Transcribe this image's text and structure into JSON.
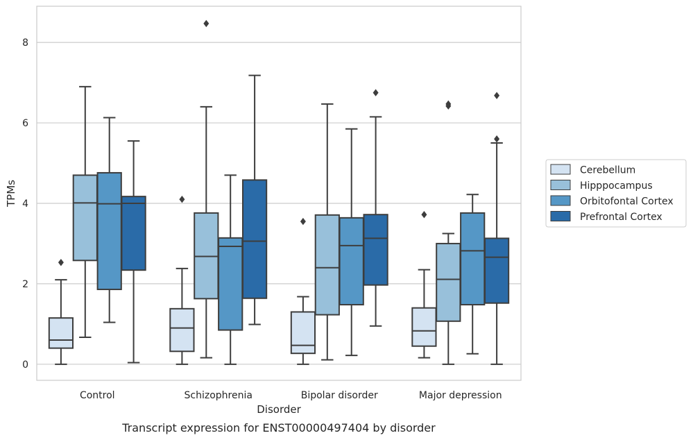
{
  "chart_data": {
    "type": "boxplot",
    "xlabel": "Disorder",
    "ylabel": "TPMs",
    "caption": "Transcript expression for ENST00000497404 by disorder",
    "ylim": [
      -0.4,
      8.9
    ],
    "yticks": [
      0,
      2,
      4,
      6,
      8
    ],
    "grid": "horizontal",
    "legend_position": "right",
    "categories": [
      "Control",
      "Schizophrenia",
      "Bipolar disorder",
      "Major depression"
    ],
    "series": [
      {
        "name": "Cerebellum",
        "color": "#d4e3f2",
        "boxes": [
          {
            "whislo": 0.0,
            "q1": 0.4,
            "med": 0.6,
            "q3": 1.15,
            "whishi": 2.1,
            "fliers": [
              2.53
            ]
          },
          {
            "whislo": 0.0,
            "q1": 0.32,
            "med": 0.9,
            "q3": 1.38,
            "whishi": 2.38,
            "fliers": [
              4.1
            ]
          },
          {
            "whislo": 0.0,
            "q1": 0.27,
            "med": 0.47,
            "q3": 1.3,
            "whishi": 1.68,
            "fliers": [
              3.55
            ]
          },
          {
            "whislo": 0.16,
            "q1": 0.45,
            "med": 0.83,
            "q3": 1.4,
            "whishi": 2.35,
            "fliers": [
              3.72
            ]
          }
        ]
      },
      {
        "name": "Hipppocampus",
        "color": "#98c0da",
        "boxes": [
          {
            "whislo": 0.67,
            "q1": 2.58,
            "med": 4.01,
            "q3": 4.7,
            "whishi": 6.9,
            "fliers": []
          },
          {
            "whislo": 0.16,
            "q1": 1.63,
            "med": 2.68,
            "q3": 3.76,
            "whishi": 6.4,
            "fliers": [
              8.47
            ]
          },
          {
            "whislo": 0.11,
            "q1": 1.23,
            "med": 2.4,
            "q3": 3.71,
            "whishi": 6.47,
            "fliers": []
          },
          {
            "whislo": 0.0,
            "q1": 1.07,
            "med": 2.11,
            "q3": 3.0,
            "whishi": 3.25,
            "fliers": [
              6.42,
              6.47
            ]
          }
        ]
      },
      {
        "name": "Orbitofontal Cortex",
        "color": "#5597c6",
        "boxes": [
          {
            "whislo": 1.04,
            "q1": 1.86,
            "med": 3.99,
            "q3": 4.76,
            "whishi": 6.13,
            "fliers": []
          },
          {
            "whislo": 0.0,
            "q1": 0.85,
            "med": 2.93,
            "q3": 3.14,
            "whishi": 4.7,
            "fliers": []
          },
          {
            "whislo": 0.22,
            "q1": 1.48,
            "med": 2.95,
            "q3": 3.64,
            "whishi": 5.85,
            "fliers": []
          },
          {
            "whislo": 0.26,
            "q1": 1.48,
            "med": 2.82,
            "q3": 3.76,
            "whishi": 4.22,
            "fliers": []
          }
        ]
      },
      {
        "name": "Prefrontal Cortex",
        "color": "#2a6ba8",
        "boxes": [
          {
            "whislo": 0.04,
            "q1": 2.34,
            "med": 4.0,
            "q3": 4.17,
            "whishi": 5.55,
            "fliers": []
          },
          {
            "whislo": 0.99,
            "q1": 1.64,
            "med": 3.06,
            "q3": 4.58,
            "whishi": 7.18,
            "fliers": []
          },
          {
            "whislo": 0.95,
            "q1": 1.97,
            "med": 3.13,
            "q3": 3.72,
            "whishi": 6.15,
            "fliers": [
              6.75
            ]
          },
          {
            "whislo": 0.0,
            "q1": 1.52,
            "med": 2.66,
            "q3": 3.13,
            "whishi": 5.5,
            "fliers": [
              5.6,
              6.68
            ]
          }
        ]
      }
    ]
  }
}
